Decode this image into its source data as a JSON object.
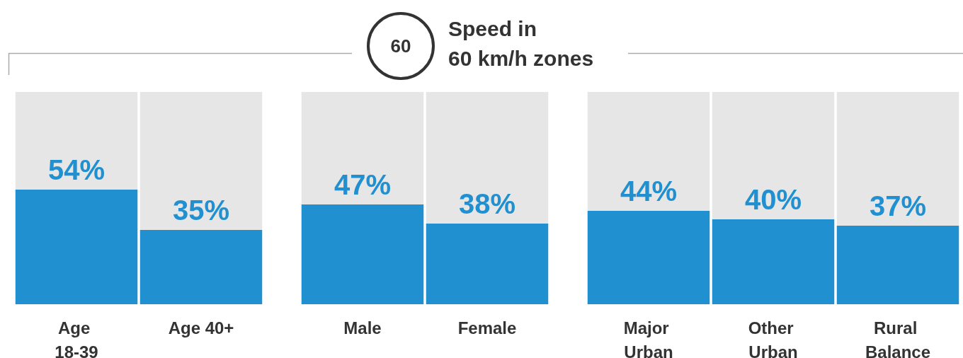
{
  "chart_data": {
    "type": "bar",
    "stacked": true,
    "title": "Speed in\n60 km/h zones",
    "annotations": [
      "60"
    ],
    "categories": [
      "Age 18-39",
      "Age 40+",
      "Male",
      "Female",
      "Major Urban",
      "Other Urban",
      "Rural Balance"
    ],
    "series": [
      {
        "color": "#2190d0",
        "values": [
          54,
          35,
          null,
          null,
          null,
          null,
          null
        ],
        "value_labels": [
          "54%",
          "35%",
          null,
          null,
          null,
          null,
          null
        ]
      },
      {
        "color": "#2190d0",
        "values": [
          null,
          null,
          47,
          38,
          null,
          null,
          null
        ],
        "value_labels": [
          null,
          null,
          "47%",
          "38%",
          null,
          null,
          null
        ]
      },
      {
        "color": "#2190d0",
        "values": [
          null,
          null,
          null,
          null,
          44,
          40,
          37
        ],
        "value_labels": [
          null,
          null,
          null,
          null,
          "44%",
          "40%",
          "37%"
        ]
      },
      {
        "color": "#e6e6e6",
        "values": [
          46,
          65,
          null,
          null,
          null,
          null,
          null
        ]
      },
      {
        "color": "#e6e6e6",
        "values": [
          null,
          null,
          53,
          62,
          null,
          null,
          null
        ]
      },
      {
        "color": "#e6e6e6",
        "values": [
          null,
          null,
          null,
          null,
          56,
          60,
          63
        ]
      }
    ],
    "ylim": [
      0,
      100
    ],
    "tick_labels": "x"
  }
}
